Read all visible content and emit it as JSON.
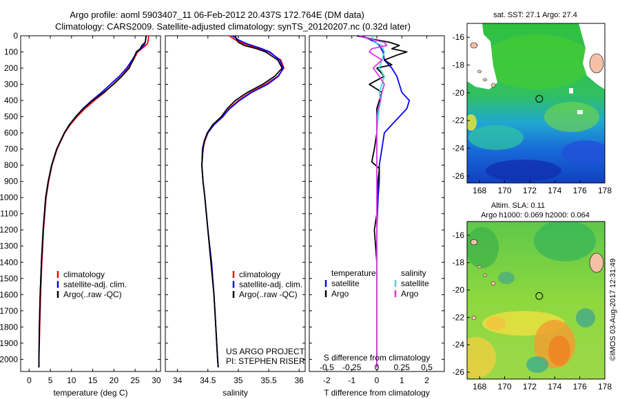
{
  "header": {
    "line1": "Argo profile: aoml 5903407_11 06-Feb-2012 20.437S 172.764E (DM data)",
    "line2": "Climatology: CARS2009. Satellite-adjusted climatology: synTS_20120207.nc (0.32d later)"
  },
  "colors": {
    "climatology": "#ff0000",
    "satellite": "#0000ff",
    "argo": "#000000",
    "sat_salinity": "#33dddd",
    "argo_salinity": "#dd33dd"
  },
  "chart_data": [
    {
      "type": "line",
      "id": "temperature",
      "xlabel": "temperature (deg C)",
      "ylabel": "",
      "xlim": [
        -2,
        31
      ],
      "ylim": [
        2075,
        0
      ],
      "xticks": [
        0,
        5,
        10,
        15,
        20,
        25,
        30
      ],
      "yticks": [
        0,
        100,
        200,
        300,
        400,
        500,
        600,
        700,
        800,
        900,
        1000,
        1100,
        1200,
        1300,
        1400,
        1500,
        1600,
        1700,
        1800,
        1900,
        2000
      ],
      "legend": [
        "climatology",
        "satellite-adj. clim.",
        "Argo(..raw -QC)"
      ],
      "series": [
        {
          "name": "climatology",
          "color": "#ff0000",
          "depth": [
            0,
            25,
            50,
            75,
            100,
            150,
            200,
            250,
            300,
            350,
            400,
            450,
            500,
            550,
            600,
            700,
            800,
            900,
            1000,
            1200,
            1400,
            1600,
            1800,
            2000,
            2050
          ],
          "values": [
            28.2,
            28.1,
            27.9,
            26.8,
            25.6,
            24.6,
            23.4,
            21.8,
            19.8,
            17.8,
            15.4,
            13.2,
            11.3,
            9.7,
            8.4,
            6.6,
            5.4,
            4.6,
            4.0,
            3.4,
            3.0,
            2.7,
            2.5,
            2.3,
            2.3
          ]
        },
        {
          "name": "satellite-adj. clim.",
          "color": "#0000ff",
          "depth": [
            0,
            25,
            50,
            75,
            100,
            150,
            200,
            250,
            300,
            350,
            400,
            450,
            500,
            550,
            600,
            700,
            800,
            900,
            1000,
            1200,
            1400,
            1600,
            1800,
            2000,
            2050
          ],
          "values": [
            27.6,
            27.5,
            27.3,
            26.6,
            25.4,
            24.3,
            23.0,
            21.3,
            19.2,
            17.1,
            14.8,
            12.7,
            11.0,
            9.5,
            8.3,
            6.5,
            5.3,
            4.5,
            3.9,
            3.3,
            2.9,
            2.6,
            2.4,
            2.3,
            2.3
          ]
        },
        {
          "name": "Argo(..raw -QC)",
          "color": "#000000",
          "depth": [
            0,
            20,
            40,
            60,
            80,
            100,
            150,
            200,
            250,
            300,
            350,
            400,
            450,
            500,
            550,
            600,
            700,
            800,
            900,
            1000,
            1200,
            1400,
            1600,
            1800,
            2000,
            2050
          ],
          "values": [
            27.6,
            27.5,
            27.4,
            26.6,
            26.2,
            25.3,
            24.5,
            23.6,
            21.9,
            19.9,
            17.6,
            15.0,
            12.8,
            11.0,
            9.5,
            8.3,
            6.5,
            5.3,
            4.5,
            3.9,
            3.3,
            2.9,
            2.6,
            2.4,
            2.3,
            2.3
          ]
        }
      ]
    },
    {
      "type": "line",
      "id": "salinity",
      "xlabel": "salinity",
      "ylabel": "",
      "xlim": [
        33.8,
        36.1
      ],
      "ylim": [
        2075,
        0
      ],
      "xticks": [
        34,
        34.5,
        35,
        35.5,
        36
      ],
      "legend": [
        "climatology",
        "satellite-adj. clim.",
        "Argo(..raw -QC)"
      ],
      "annotation": [
        "US ARGO PROJECT",
        "PI: STEPHEN RISER"
      ],
      "series": [
        {
          "name": "climatology",
          "color": "#ff0000",
          "depth": [
            0,
            25,
            50,
            75,
            100,
            150,
            200,
            250,
            300,
            350,
            400,
            450,
            500,
            550,
            600,
            650,
            700,
            800,
            900,
            1000,
            1200,
            1400,
            1600,
            1800,
            2000,
            2050
          ],
          "values": [
            34.85,
            34.95,
            35.1,
            35.3,
            35.5,
            35.7,
            35.75,
            35.65,
            35.45,
            35.2,
            35.0,
            34.85,
            34.75,
            34.6,
            34.5,
            34.45,
            34.42,
            34.4,
            34.42,
            34.45,
            34.5,
            34.55,
            34.6,
            34.63,
            34.66,
            34.67
          ]
        },
        {
          "name": "satellite-adj. clim.",
          "color": "#0000ff",
          "depth": [
            0,
            25,
            50,
            75,
            100,
            150,
            200,
            250,
            300,
            350,
            400,
            450,
            500,
            550,
            600,
            650,
            700,
            800,
            900,
            1000,
            1200,
            1400,
            1600,
            1800,
            2000,
            2050
          ],
          "values": [
            34.9,
            35.0,
            35.15,
            35.35,
            35.52,
            35.68,
            35.74,
            35.66,
            35.48,
            35.22,
            35.02,
            34.86,
            34.74,
            34.6,
            34.5,
            34.44,
            34.41,
            34.4,
            34.42,
            34.45,
            34.5,
            34.56,
            34.6,
            34.63,
            34.66,
            34.67
          ]
        },
        {
          "name": "Argo(..raw -QC)",
          "color": "#000000",
          "depth": [
            0,
            20,
            40,
            60,
            80,
            100,
            150,
            200,
            250,
            300,
            350,
            400,
            450,
            500,
            550,
            600,
            650,
            700,
            800,
            900,
            1000,
            1200,
            1400,
            1600,
            1800,
            2000,
            2050
          ],
          "values": [
            34.95,
            34.97,
            35.0,
            35.1,
            35.3,
            35.45,
            35.65,
            35.72,
            35.6,
            35.4,
            35.15,
            34.95,
            34.82,
            34.72,
            34.58,
            34.49,
            34.44,
            34.42,
            34.4,
            34.42,
            34.45,
            34.5,
            34.55,
            34.6,
            34.63,
            34.66,
            34.67
          ]
        }
      ]
    },
    {
      "type": "line",
      "id": "difference",
      "xlabel": "T difference from climatology",
      "xlabel_top": "S difference from climatology",
      "xlim": [
        -2.7,
        2.7
      ],
      "ylim": [
        2075,
        0
      ],
      "xticks_T": [
        -2,
        -1,
        0,
        1,
        2
      ],
      "xticks_S": [
        "-0.5",
        "-0.25",
        "0",
        "0.25",
        "0.5"
      ],
      "xticks_S_pos": [
        -2,
        -1,
        0,
        1,
        2
      ],
      "legend_headers": [
        "temperature",
        "salinity"
      ],
      "legend": [
        "satellite",
        "Argo",
        "satellite",
        "Argo"
      ],
      "series": [
        {
          "name": "temperature satellite",
          "color": "#0000ff",
          "depth": [
            0,
            40,
            60,
            100,
            150,
            200,
            250,
            300,
            350,
            400,
            450,
            500,
            550,
            600,
            700,
            800,
            900,
            1000,
            1200,
            1400,
            1600,
            1800,
            2000,
            2050
          ],
          "values": [
            -0.6,
            -0.05,
            0.1,
            0.25,
            0.3,
            0.6,
            0.8,
            0.9,
            1.0,
            1.3,
            1.2,
            0.9,
            0.6,
            0.3,
            0.2,
            0.1,
            0.1,
            0.05,
            0.0,
            0.0,
            0.0,
            0.0,
            0.0,
            0.0
          ]
        },
        {
          "name": "temperature Argo",
          "color": "#000000",
          "depth": [
            0,
            20,
            40,
            60,
            80,
            100,
            120,
            150,
            180,
            200,
            250,
            300,
            350,
            400,
            450,
            500,
            600,
            700,
            780,
            820,
            900,
            1000,
            1100,
            1200,
            1400,
            1600,
            1800,
            2000,
            2050
          ],
          "values": [
            -0.8,
            -0.2,
            0.5,
            0.9,
            0.6,
            1.2,
            0.8,
            0.3,
            0.6,
            0.0,
            0.3,
            -0.3,
            0.2,
            0.1,
            0.0,
            0.0,
            0.0,
            -0.1,
            -0.2,
            0.1,
            0.05,
            0.0,
            0.0,
            -0.1,
            0.0,
            0.0,
            0.0,
            0.0,
            0.0
          ]
        },
        {
          "name": "salinity satellite",
          "color": "#33dddd",
          "depth": [
            0,
            40,
            60,
            100,
            150,
            200,
            250,
            300,
            350,
            400,
            450,
            500,
            600,
            700,
            800,
            900,
            1000,
            1200,
            1400,
            1600,
            1800,
            2000,
            2050
          ],
          "values": [
            -0.2,
            -0.1,
            0.2,
            0.3,
            0.2,
            0.1,
            0.3,
            0.2,
            0.1,
            0.15,
            0.1,
            0.05,
            0.0,
            0.0,
            0.0,
            0.0,
            0.0,
            0.0,
            0.0,
            0.0,
            0.0,
            0.0,
            0.0
          ]
        },
        {
          "name": "salinity Argo",
          "color": "#dd33dd",
          "depth": [
            0,
            20,
            40,
            60,
            80,
            100,
            150,
            200,
            250,
            300,
            350,
            400,
            450,
            500,
            550,
            600,
            700,
            800,
            900,
            1000,
            1200,
            1400,
            1600,
            1800,
            2000,
            2050
          ],
          "values": [
            -0.7,
            -0.3,
            0.3,
            0.4,
            -0.2,
            -0.3,
            0.2,
            -0.15,
            0.1,
            0.3,
            0.2,
            0.15,
            0.05,
            0.0,
            0.0,
            0.0,
            0.0,
            0.0,
            0.0,
            0.0,
            0.0,
            0.0,
            0.0,
            0.0,
            0.0,
            0.0
          ]
        }
      ]
    },
    {
      "type": "heatmap",
      "id": "sst-map",
      "title": "sat. SST: 27.1  Argo: 27.4",
      "xlim": [
        167,
        178
      ],
      "ylim": [
        -26.5,
        -15
      ],
      "xticks": [
        168,
        170,
        172,
        174,
        176,
        178
      ],
      "yticks": [
        -16,
        -18,
        -20,
        -22,
        -24,
        -26
      ],
      "marker": {
        "lon": 172.764,
        "lat": -20.437
      }
    },
    {
      "type": "heatmap",
      "id": "sla-map",
      "title": "Altim. SLA: 0.11",
      "subtitle": "Argo h1000: 0.069 h2000: 0.064",
      "xlim": [
        167,
        178
      ],
      "ylim": [
        -26.5,
        -15
      ],
      "xticks": [
        168,
        170,
        172,
        174,
        176,
        178
      ],
      "yticks": [
        -16,
        -18,
        -20,
        -22,
        -24,
        -26
      ],
      "marker": {
        "lon": 172.764,
        "lat": -20.437
      }
    }
  ],
  "credit": "©IMOS 03-Aug-2017 12:31:49"
}
